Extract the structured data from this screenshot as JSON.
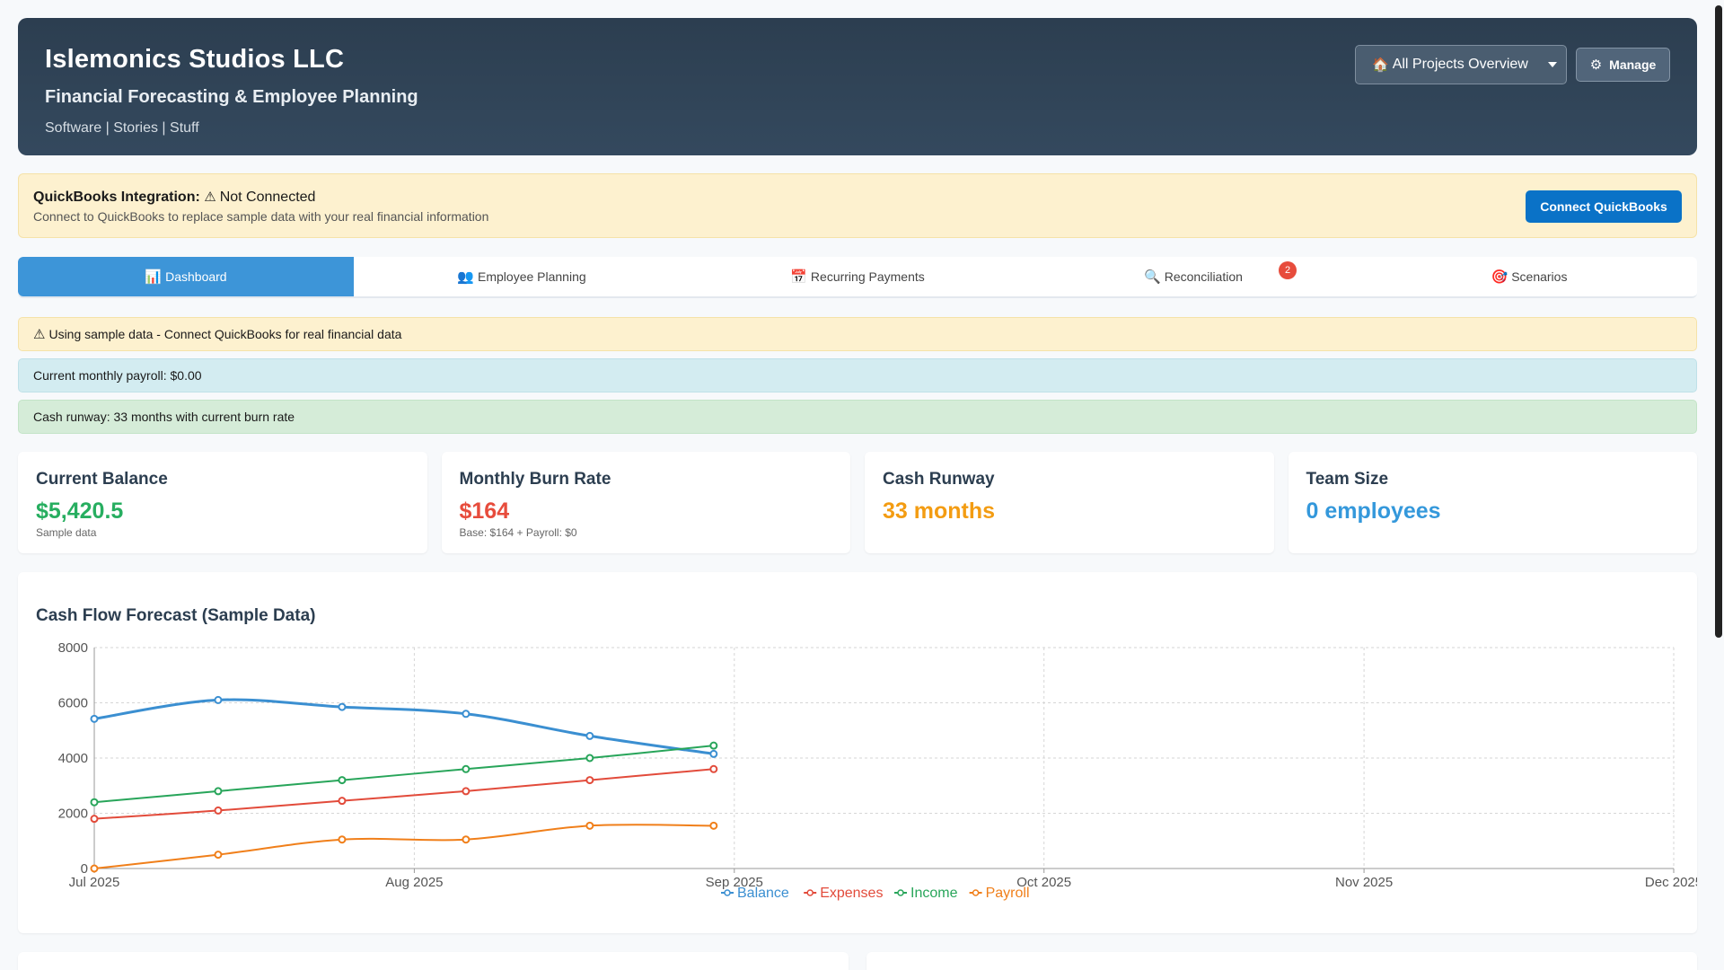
{
  "header": {
    "title": "Islemonics Studios LLC",
    "subtitle": "Financial Forecasting & Employee Planning",
    "tagline": "Software | Stories | Stuff",
    "project_select": "All Projects Overview",
    "manage_label": "Manage"
  },
  "quickbooks": {
    "label": "QuickBooks Integration:",
    "status": "Not Connected",
    "description": "Connect to QuickBooks to replace sample data with your real financial information",
    "connect_label": "Connect QuickBooks"
  },
  "tabs": [
    {
      "label": "Dashboard",
      "icon": "chart-icon"
    },
    {
      "label": "Employee Planning",
      "icon": "people-icon"
    },
    {
      "label": "Recurring Payments",
      "icon": "calendar-icon"
    },
    {
      "label": "Reconciliation",
      "icon": "magnifier-icon",
      "badge": "2"
    },
    {
      "label": "Scenarios",
      "icon": "target-icon"
    }
  ],
  "alerts": {
    "warning": "Using sample data - Connect QuickBooks for real financial data",
    "payroll": "Current monthly payroll: $0.00",
    "runway": "Cash runway: 33 months with current burn rate"
  },
  "cards": [
    {
      "label": "Current Balance",
      "value": "$5,420.5",
      "note": "Sample data",
      "color": "#27ae60"
    },
    {
      "label": "Monthly Burn Rate",
      "value": "$164",
      "note": "Base: $164 + Payroll: $0",
      "color": "#e74c3c"
    },
    {
      "label": "Cash Runway",
      "value": "33 months",
      "note": "",
      "color": "#f39c12"
    },
    {
      "label": "Team Size",
      "value": "0 employees",
      "note": "",
      "color": "#3498db"
    }
  ],
  "chart_data": {
    "type": "line",
    "title": "Cash Flow Forecast (Sample Data)",
    "x_ticks": [
      "Jul 2025",
      "Aug 2025",
      "Sep 2025",
      "Oct 2025",
      "Nov 2025",
      "Dec 2025"
    ],
    "x_range_days": [
      0,
      153
    ],
    "ylim": [
      0,
      8000
    ],
    "y_ticks": [
      0,
      2000,
      4000,
      6000,
      8000
    ],
    "grid": true,
    "legend": "bottom",
    "x_days": [
      0,
      12,
      24,
      36,
      48,
      60
    ],
    "series": [
      {
        "name": "Balance",
        "color": "#3b8fd1",
        "values": [
          5420,
          6100,
          5850,
          5600,
          4800,
          4150
        ]
      },
      {
        "name": "Expenses",
        "color": "#e24b3b",
        "values": [
          1800,
          2100,
          2450,
          2800,
          3200,
          3600
        ]
      },
      {
        "name": "Income",
        "color": "#28a55a",
        "values": [
          2400,
          2800,
          3200,
          3600,
          4000,
          4450
        ]
      },
      {
        "name": "Payroll",
        "color": "#f07f1a",
        "values": [
          0,
          500,
          1050,
          1050,
          1550,
          1550
        ]
      }
    ]
  }
}
